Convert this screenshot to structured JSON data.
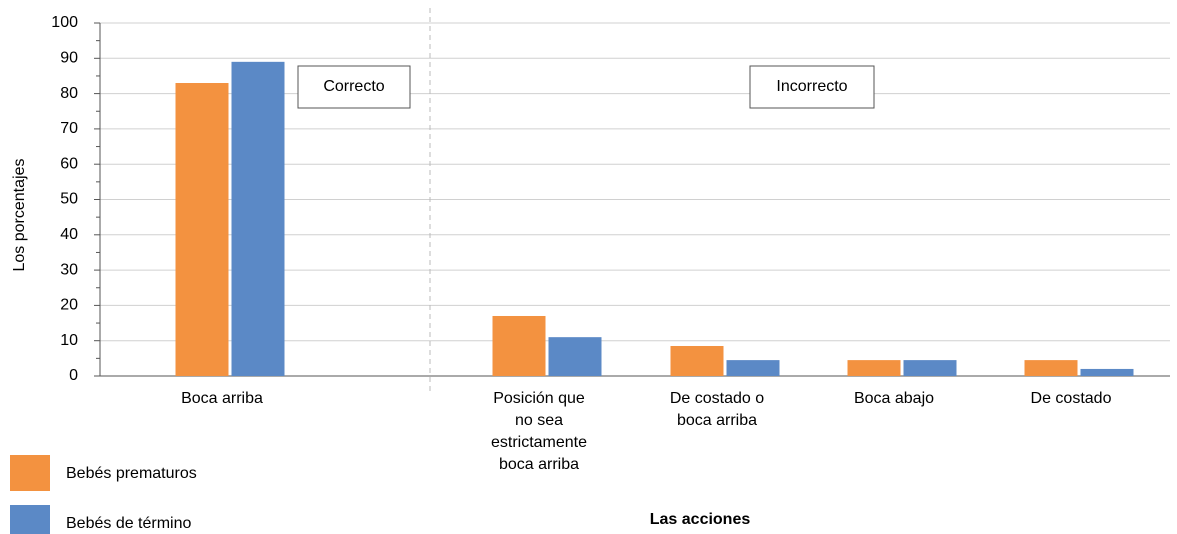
{
  "chart_data": {
    "type": "bar",
    "y_label": "Los porcentajes",
    "x_label": "Las acciones",
    "categories": [
      [
        "Boca arriba"
      ],
      [
        "Posición que",
        "no sea",
        "estrictamente",
        "boca arriba"
      ],
      [
        "De costado o",
        "boca arriba"
      ],
      [
        "Boca abajo"
      ],
      [
        "De costado"
      ]
    ],
    "series": [
      {
        "name": "Bebés prematuros",
        "color": "#f39240",
        "values": [
          83,
          17,
          8.5,
          4.5,
          4.5
        ]
      },
      {
        "name": "Bebés de término",
        "color": "#5b89c6",
        "values": [
          89,
          11,
          4.5,
          4.5,
          2
        ]
      }
    ],
    "ylim": [
      0,
      100
    ],
    "yticks": [
      0,
      10,
      20,
      30,
      40,
      50,
      60,
      70,
      80,
      90,
      100
    ],
    "grid": true,
    "annotations": [
      "Correcto",
      "Incorrecto"
    ]
  }
}
